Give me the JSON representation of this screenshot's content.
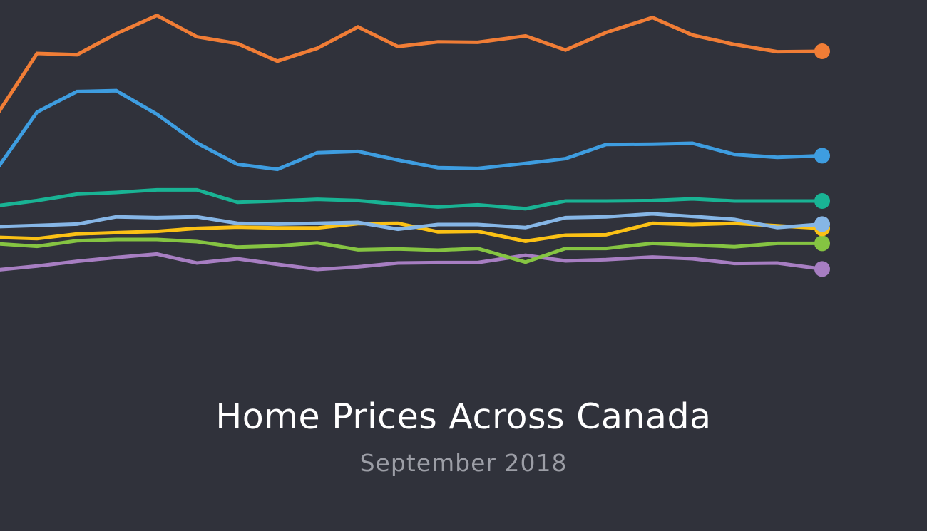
{
  "title": "Home Prices Across Canada",
  "subtitle": "September 2018",
  "chart_data": {
    "type": "line",
    "title": "Home Prices Across Canada",
    "subtitle": "September 2018",
    "xlabel": "",
    "ylabel": "",
    "grid": false,
    "legend": "none",
    "axes_visible": false,
    "point_count": 21,
    "ylim": [
      0,
      100
    ],
    "end_markers": true,
    "series": [
      {
        "color": "#f07d36",
        "values": [
          73.5,
          87.5,
          87.2,
          92.1,
          96.4,
          91.4,
          89.8,
          85.7,
          88.7,
          93.7,
          89.1,
          90.2,
          90.1,
          91.6,
          88.3,
          92.4,
          95.9,
          91.8,
          89.6,
          87.9,
          88.0
        ]
      },
      {
        "color": "#3e9de0",
        "values": [
          60.8,
          73.8,
          78.6,
          78.8,
          73.3,
          66.6,
          61.6,
          60.4,
          64.3,
          64.6,
          62.6,
          60.8,
          60.6,
          61.8,
          62.9,
          66.2,
          66.3,
          66.5,
          63.9,
          63.2,
          63.6
        ]
      },
      {
        "color": "#19b394",
        "values": [
          51.9,
          53.1,
          54.6,
          55.0,
          55.6,
          55.6,
          52.7,
          53.0,
          53.4,
          53.1,
          52.3,
          51.6,
          52.1,
          51.2,
          53.0,
          53.0,
          53.1,
          53.5,
          53.0,
          53.0,
          53.0
        ]
      },
      {
        "color": "#86b6e6",
        "values": [
          47.0,
          47.3,
          47.6,
          49.3,
          49.1,
          49.3,
          47.8,
          47.6,
          47.8,
          48.0,
          46.4,
          47.5,
          47.5,
          46.8,
          49.1,
          49.3,
          50.0,
          49.4,
          48.7,
          46.8,
          47.6
        ]
      },
      {
        "color": "#fbc115",
        "values": [
          44.5,
          44.2,
          45.3,
          45.6,
          45.9,
          46.6,
          46.9,
          46.7,
          46.7,
          47.7,
          47.8,
          45.8,
          45.9,
          43.6,
          45.0,
          45.1,
          47.8,
          47.5,
          47.8,
          47.2,
          46.6
        ]
      },
      {
        "color": "#85c442",
        "values": [
          43.0,
          42.4,
          43.7,
          44.0,
          44.0,
          43.5,
          42.2,
          42.5,
          43.2,
          41.6,
          41.8,
          41.5,
          41.9,
          38.7,
          41.9,
          41.9,
          43.1,
          42.7,
          42.3,
          43.1,
          43.1
        ]
      },
      {
        "color": "#a77ec2",
        "values": [
          36.9,
          37.8,
          38.9,
          39.8,
          40.6,
          38.5,
          39.5,
          38.2,
          37.0,
          37.6,
          38.5,
          38.6,
          38.6,
          40.3,
          39.0,
          39.3,
          39.9,
          39.5,
          38.4,
          38.5,
          37.1
        ]
      }
    ]
  }
}
